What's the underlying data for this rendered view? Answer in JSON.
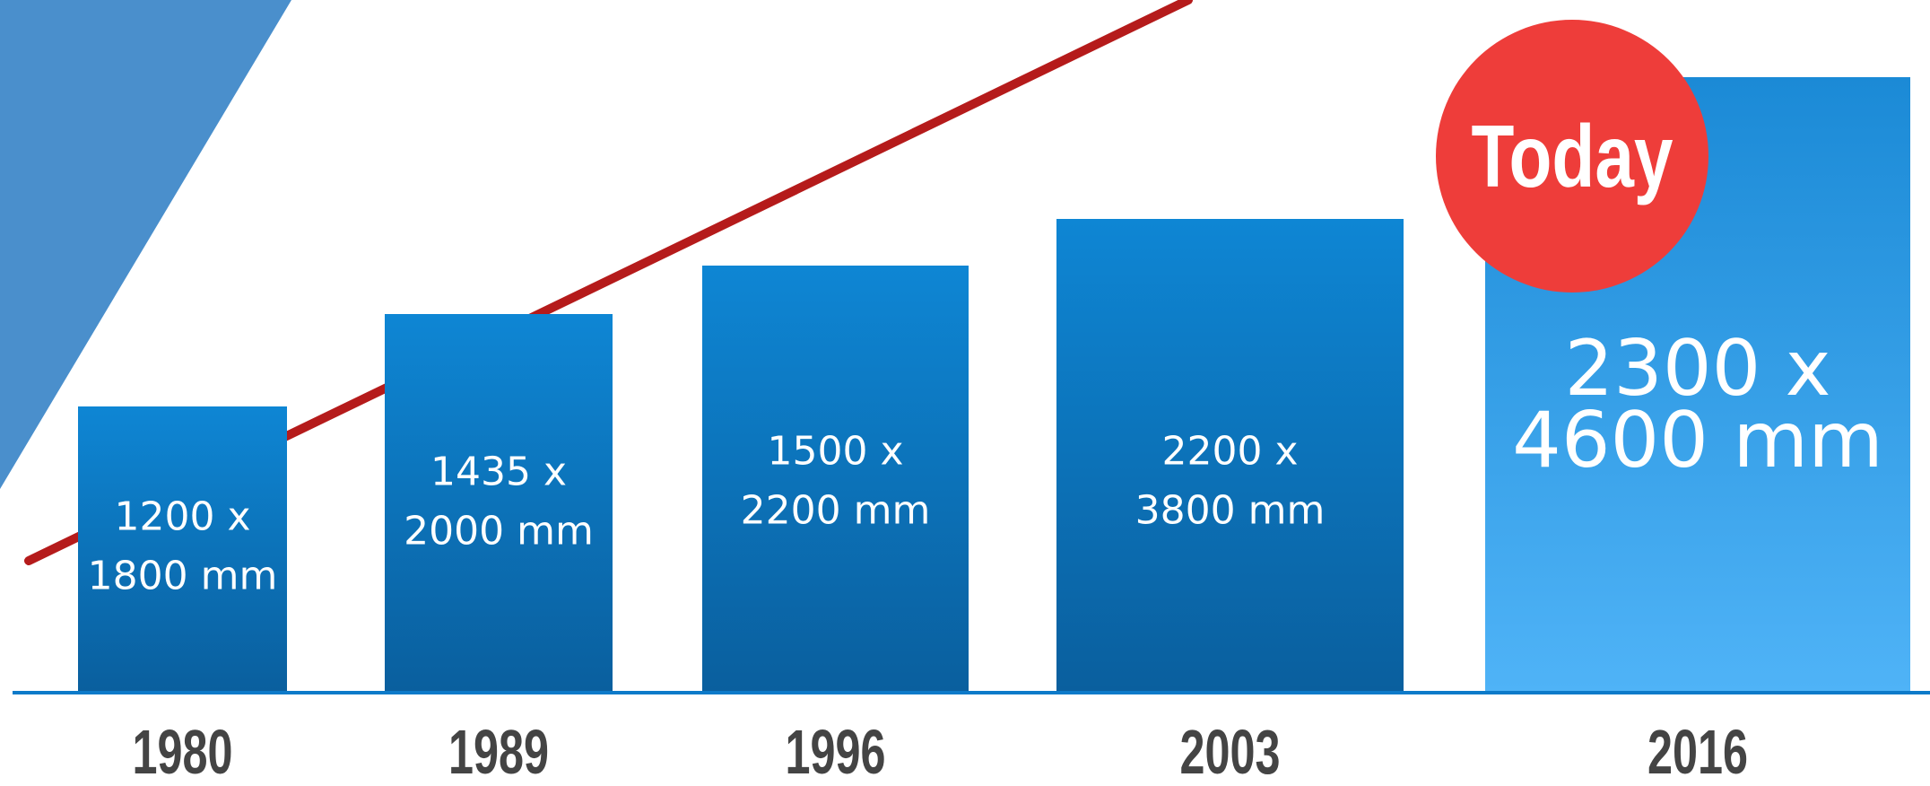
{
  "chart_data": {
    "type": "bar",
    "categories": [
      "1980",
      "1989",
      "1996",
      "2003",
      "2016"
    ],
    "values": [
      1800,
      2000,
      2200,
      3800,
      4600
    ],
    "labels": [
      [
        "1200 x",
        "1800 mm"
      ],
      [
        "1435 x",
        "2000 mm"
      ],
      [
        "1500 x",
        "2200 mm"
      ],
      [
        "2200 x",
        "3800 mm"
      ],
      [
        "2300 x",
        "4600 mm"
      ]
    ],
    "highlight_index": 4,
    "highlight_badge": "Today",
    "trend_line": true,
    "grid": false,
    "title": "",
    "xlabel": "",
    "ylabel": ""
  },
  "colors": {
    "bar_top": "#0e86d4",
    "bar_bottom": "#0a5f9e",
    "highlight_top": "#1b8ad6",
    "highlight_bottom": "#4fb3f7",
    "trend_line": "#b51b1b",
    "badge": "#ee3d3a",
    "axis": "#0d7ac9",
    "decor_triangle": "#4a8fcc",
    "year_text": "#444444"
  }
}
